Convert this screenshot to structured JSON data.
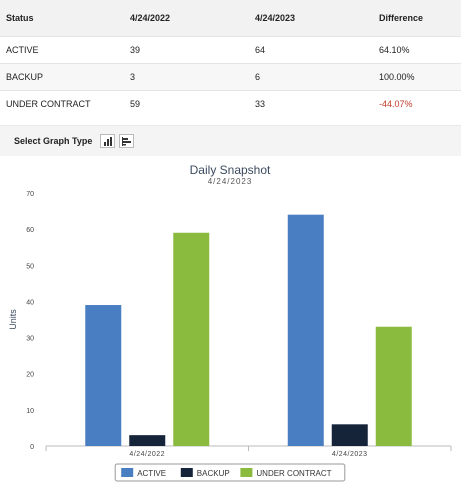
{
  "table": {
    "headers": [
      "Status",
      "4/24/2022",
      "4/24/2023",
      "Difference"
    ],
    "rows": [
      {
        "status": "ACTIVE",
        "v2022": "39",
        "v2023": "64",
        "diff": "64.10%"
      },
      {
        "status": "BACKUP",
        "v2022": "3",
        "v2023": "6",
        "diff": "100.00%"
      },
      {
        "status": "UNDER CONTRACT",
        "v2022": "59",
        "v2023": "33",
        "diff": "-44.07%"
      }
    ]
  },
  "graph_type": {
    "label": "Select Graph Type",
    "options": [
      {
        "name": "vertical-bar",
        "icon": "vertical-bar-chart-icon"
      },
      {
        "name": "horizontal-bar",
        "icon": "horizontal-bar-chart-icon"
      }
    ]
  },
  "colors": {
    "ACTIVE": "#4a7ec2",
    "BACKUP": "#16243a",
    "UNDER CONTRACT": "#8bbb3e",
    "negative": "#c0392b"
  },
  "chart_data": {
    "type": "bar",
    "title": "Daily Snapshot",
    "subtitle": "4/24/2023",
    "ylabel": "Units",
    "xlabel": "",
    "ylim": [
      0,
      70
    ],
    "yticks": [
      0,
      10,
      20,
      30,
      40,
      50,
      60,
      70
    ],
    "categories": [
      "4/24/2022",
      "4/24/2023"
    ],
    "series": [
      {
        "name": "ACTIVE",
        "values": [
          39,
          64
        ]
      },
      {
        "name": "BACKUP",
        "values": [
          3,
          6
        ]
      },
      {
        "name": "UNDER CONTRACT",
        "values": [
          59,
          33
        ]
      }
    ],
    "legend_position": "bottom",
    "grid": false
  }
}
